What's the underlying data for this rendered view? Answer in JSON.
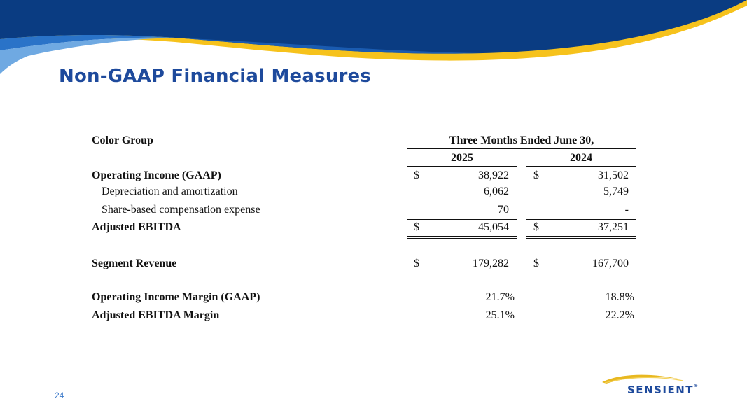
{
  "slide": {
    "title": "Non-GAAP Financial Measures",
    "page_number": "24",
    "logo_text": "SENSIENT",
    "logo_mark": "®"
  },
  "colors": {
    "title_blue": "#1e4a9c",
    "banner_dark": "#0b3f86",
    "banner_mid": "#2a73c8",
    "banner_light": "#7fb6e8",
    "banner_yellow": "#f6c21c"
  },
  "table": {
    "group_label": "Color Group",
    "period_header": "Three Months Ended June 30,",
    "years": [
      "2025",
      "2024"
    ],
    "currency_symbol": "$",
    "rows": [
      {
        "label": "Operating Income (GAAP)",
        "v2025": "38,922",
        "v2024": "31,502",
        "bold": true,
        "currency": true
      },
      {
        "label": "Depreciation and amortization",
        "v2025": "6,062",
        "v2024": "5,749",
        "bold": false,
        "currency": false
      },
      {
        "label": "Share-based compensation expense",
        "v2025": "70",
        "v2024": "-",
        "bold": false,
        "currency": false
      },
      {
        "label": "Adjusted EBITDA",
        "v2025": "45,054",
        "v2024": "37,251",
        "bold": true,
        "currency": true
      },
      {
        "label": "Segment Revenue",
        "v2025": "179,282",
        "v2024": "167,700",
        "bold": true,
        "currency": true
      },
      {
        "label": "Operating Income Margin (GAAP)",
        "v2025": "21.7%",
        "v2024": "18.8%",
        "bold": true,
        "currency": false
      },
      {
        "label": "Adjusted EBITDA Margin",
        "v2025": "25.1%",
        "v2024": "22.2%",
        "bold": true,
        "currency": false
      }
    ]
  }
}
